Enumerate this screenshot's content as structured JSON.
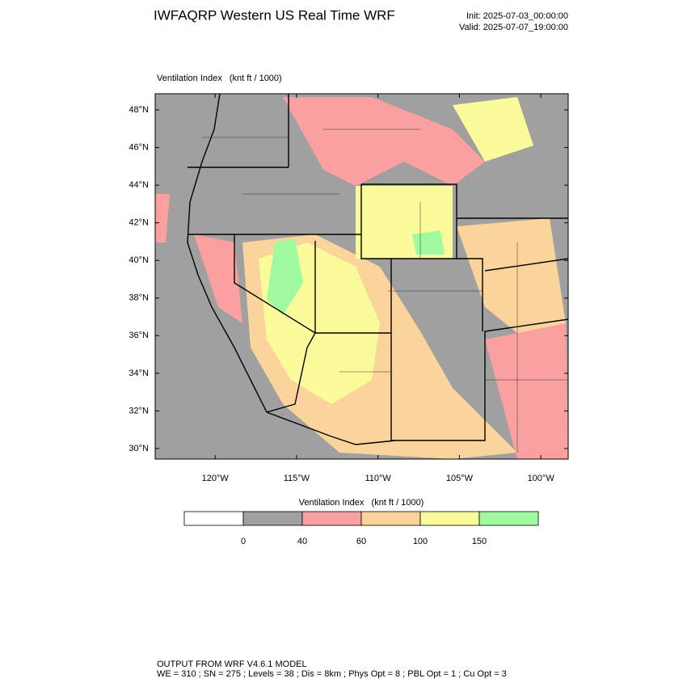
{
  "chart_data": {
    "type": "map",
    "title": "IWFAQRP Western US Real Time WRF",
    "init": "Init: 2025-07-03_00:00:00",
    "valid": "Valid: 2025-07-07_19:00:00",
    "subtitle": "Ventilation Index   (knt ft / 1000)",
    "lonlim": [
      -123.68,
      -98.32
    ],
    "latlim": [
      29.44,
      48.86
    ],
    "xticks": [
      {
        "value": -120,
        "label": "120°W"
      },
      {
        "value": -115,
        "label": "115°W"
      },
      {
        "value": -110,
        "label": "110°W"
      },
      {
        "value": -105,
        "label": "105°W"
      },
      {
        "value": -100,
        "label": "100°W"
      }
    ],
    "yticks": [
      {
        "value": 30,
        "label": "30°N"
      },
      {
        "value": 32,
        "label": "32°N"
      },
      {
        "value": 34,
        "label": "34°N"
      },
      {
        "value": 36,
        "label": "36°N"
      },
      {
        "value": 38,
        "label": "38°N"
      },
      {
        "value": 40,
        "label": "40°N"
      },
      {
        "value": 42,
        "label": "42°N"
      },
      {
        "value": 44,
        "label": "44°N"
      },
      {
        "value": 46,
        "label": "46°N"
      },
      {
        "value": 48,
        "label": "48°N"
      }
    ],
    "colorbar": {
      "title": "Ventilation Index   (knt ft / 1000)",
      "ticks": [
        0,
        40,
        60,
        100,
        150
      ],
      "colors": [
        "#ffffff",
        "#a0a0a0",
        "#fba0a0",
        "#fbd49c",
        "#fbfb9c",
        "#a0fba0"
      ]
    },
    "footer": [
      "OUTPUT FROM WRF V4.6.1 MODEL",
      "WE = 310 ; SN = 275 ; Levels = 38 ; Dis = 8km ; Phys Opt = 8 ; PBL Opt = 1 ; Cu Opt = 3"
    ]
  }
}
